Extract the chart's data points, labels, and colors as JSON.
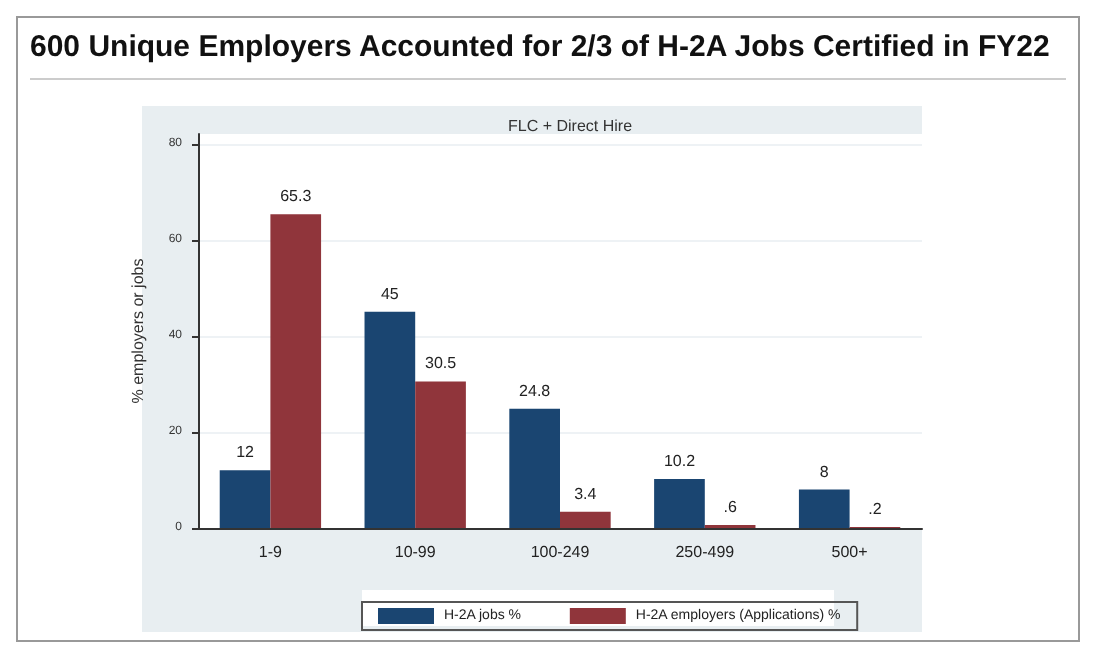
{
  "chart_data": {
    "type": "bar",
    "title": "600 Unique Employers Accounted for 2/3 of H-2A Jobs Certified in FY22",
    "subtitle": "FLC + Direct Hire",
    "ylabel": "% employers or jobs",
    "categories": [
      "1-9",
      "10-99",
      "100-249",
      "250-499",
      "500+"
    ],
    "series": [
      {
        "name": "H-2A jobs %",
        "color": "#1a4571",
        "values": [
          12,
          45,
          24.8,
          10.2,
          8
        ],
        "value_labels": [
          "12",
          "45",
          "24.8",
          "10.2",
          "8"
        ]
      },
      {
        "name": "H-2A employers (Applications) %",
        "color": "#90353b",
        "values": [
          65.3,
          30.5,
          3.4,
          0.6,
          0.2
        ],
        "value_labels": [
          "65.3",
          "30.5",
          "3.4",
          ".6",
          ".2"
        ]
      }
    ],
    "ylim": [
      0,
      82
    ],
    "yticks": [
      0,
      20,
      40,
      60,
      80
    ],
    "grid": "y",
    "legend": "bottom"
  }
}
